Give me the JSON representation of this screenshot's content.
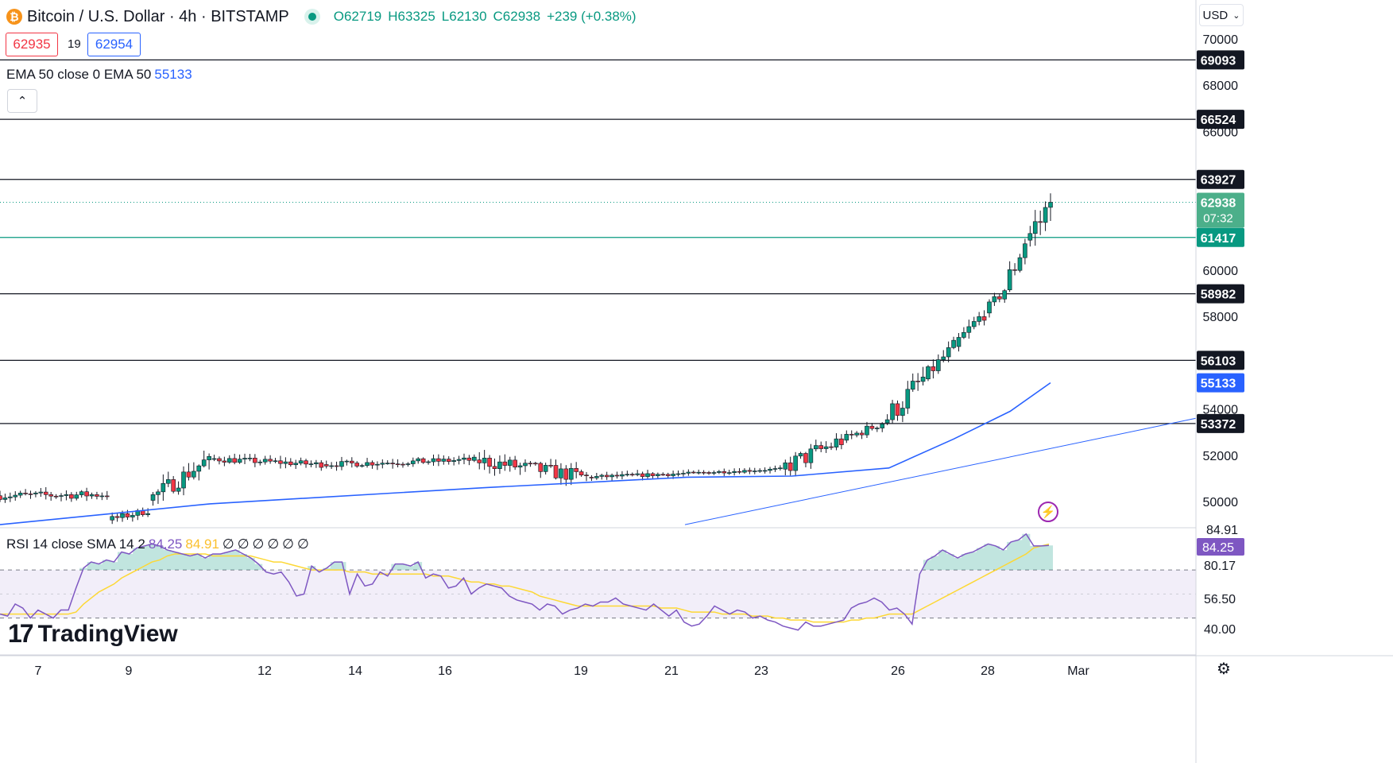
{
  "header": {
    "symbol_icon": "bitcoin-icon",
    "title": "Bitcoin / U.S. Dollar",
    "interval": "4h",
    "exchange": "BITSTAMP",
    "open": "O62719",
    "high": "H63325",
    "low": "L62130",
    "close": "C62938",
    "change": "+239 (+0.38%)"
  },
  "trade": {
    "sell": "62935",
    "spread": "19",
    "buy": "62954"
  },
  "ema_legend": {
    "label": "EMA 50 close 0 EMA 50",
    "value": "55133"
  },
  "rsi_legend": {
    "label": "RSI 14 close SMA 14 2",
    "rsi_value": "84.25",
    "sma_value": "84.91",
    "extras": [
      "∅",
      "∅",
      "∅",
      "∅",
      "∅",
      "∅"
    ]
  },
  "currency_selector": "USD",
  "branding": "TradingView",
  "colors": {
    "up": "#089981",
    "down": "#f23645",
    "ema": "#2962ff",
    "rsi": "#7e57c2",
    "rsi_sma": "#fdd835",
    "level": "#131722"
  },
  "chart_data": [
    {
      "type": "candlestick",
      "title": "Bitcoin / U.S. Dollar · 4h · BITSTAMP",
      "x_ticks": [
        "7",
        "9",
        "12",
        "14",
        "16",
        "19",
        "21",
        "23",
        "26",
        "28",
        "Mar"
      ],
      "y_ticks": [
        "50000",
        "52000",
        "54000",
        "58000",
        "60000",
        "66000",
        "68000",
        "70000"
      ],
      "ylim": [
        49000,
        71000
      ],
      "horizontal_levels": [
        69093,
        66524,
        63927,
        58982,
        56103,
        53372
      ],
      "support_level": 61417,
      "last_price": "62938",
      "countdown": "07:32",
      "ema_last": "55133",
      "trendline": {
        "from_price": 49000,
        "to_price": 53600
      },
      "ohlc_stages": [
        [
          50250,
          49950,
          51050,
          50300,
          22,
          0.3
        ],
        [
          49200,
          49000,
          50150,
          49600,
          8,
          0.25
        ],
        [
          50050,
          49500,
          51950,
          51850,
          12,
          0.3
        ],
        [
          51850,
          51300,
          52350,
          51600,
          22,
          0.25
        ],
        [
          51600,
          51150,
          52150,
          51800,
          30,
          0.25
        ],
        [
          51800,
          50550,
          52600,
          51050,
          22,
          0.3
        ],
        [
          51050,
          50750,
          51500,
          51200,
          18,
          0.2
        ],
        [
          51200,
          51000,
          51550,
          51400,
          20,
          0.2
        ],
        [
          51400,
          51300,
          52900,
          52650,
          12,
          0.5
        ],
        [
          52650,
          52400,
          53650,
          53400,
          8,
          0.3
        ],
        [
          53400,
          53100,
          55700,
          55300,
          8,
          0.4
        ],
        [
          55300,
          55150,
          57150,
          56700,
          6,
          0.3
        ],
        [
          56700,
          56600,
          58250,
          58150,
          6,
          0.4
        ],
        [
          58150,
          58000,
          59200,
          59150,
          4,
          0.4
        ],
        [
          59150,
          59050,
          61450,
          61300,
          4,
          0.5
        ],
        [
          61300,
          60300,
          63600,
          62700,
          5,
          0.6
        ]
      ],
      "ema_path": [
        [
          0,
          49000
        ],
        [
          26,
          49900
        ],
        [
          60,
          50600
        ],
        [
          85,
          51050
        ],
        [
          98,
          51100
        ],
        [
          110,
          51450
        ],
        [
          118,
          52700
        ],
        [
          125,
          53900
        ],
        [
          130,
          55133
        ]
      ]
    },
    {
      "type": "line",
      "title": "RSI 14 close SMA 14 2",
      "y_ticks": [
        "80.17",
        "56.50",
        "40.00"
      ],
      "ylim": [
        30,
        88
      ],
      "band": [
        48,
        72
      ],
      "rsi_last": "84.25",
      "sma_last": "84.91",
      "series": [
        {
          "name": "RSI",
          "values": [
            50,
            49,
            55,
            53,
            48,
            52,
            50,
            48,
            52,
            52,
            63,
            73,
            76,
            75,
            77,
            76,
            81,
            80,
            83,
            84,
            85,
            84,
            82,
            81,
            80,
            79,
            80,
            78,
            80,
            80,
            81,
            82,
            80,
            78,
            75,
            71,
            70,
            71,
            66,
            59,
            60,
            74,
            71,
            73,
            76,
            76,
            60,
            70,
            64,
            65,
            71,
            69,
            75,
            75,
            74,
            76,
            68,
            70,
            69,
            63,
            64,
            68,
            60,
            63,
            65,
            64,
            63,
            59,
            57,
            56,
            55,
            52,
            55,
            54,
            50,
            52,
            53,
            55,
            54,
            56,
            56,
            58,
            55,
            54,
            53,
            52,
            55,
            52,
            49,
            52,
            46,
            44,
            45,
            49,
            54,
            52,
            50,
            52,
            51,
            48,
            49,
            47,
            46,
            44,
            43,
            42,
            46,
            44,
            44,
            45,
            46,
            47,
            53,
            55,
            56,
            58,
            56,
            52,
            53,
            50,
            45,
            70,
            77,
            79,
            82,
            80,
            78,
            80,
            81,
            83,
            85,
            84,
            82,
            86,
            87,
            90,
            84,
            84,
            84.25
          ]
        },
        {
          "name": "SMA",
          "values": [
            50,
            50,
            50,
            50,
            50,
            50,
            50,
            50,
            50,
            50,
            51,
            55,
            58,
            61,
            63,
            65,
            68,
            70,
            72,
            74,
            76,
            77,
            79,
            80,
            80,
            80,
            80,
            80,
            79,
            79,
            79,
            79,
            79,
            79,
            78,
            77,
            76,
            76,
            75,
            74,
            73,
            72,
            72,
            72,
            72,
            72,
            71,
            71,
            71,
            70,
            70,
            70,
            70,
            70,
            70,
            70,
            70,
            69,
            69,
            69,
            68,
            67,
            66,
            66,
            65,
            65,
            64,
            64,
            63,
            62,
            61,
            59,
            58,
            57,
            56,
            55,
            54,
            54,
            54,
            54,
            54,
            54,
            54,
            54,
            54,
            54,
            54,
            53,
            53,
            53,
            52,
            51,
            51,
            51,
            51,
            50,
            50,
            50,
            50,
            49,
            49,
            49,
            48,
            48,
            47,
            47,
            47,
            46,
            46,
            46,
            46,
            46,
            47,
            47,
            48,
            48,
            49,
            50,
            50,
            50,
            50,
            52,
            54,
            56,
            58,
            60,
            62,
            64,
            66,
            68,
            70,
            72,
            74,
            76,
            78,
            80,
            83,
            84,
            84.91
          ]
        }
      ]
    }
  ]
}
